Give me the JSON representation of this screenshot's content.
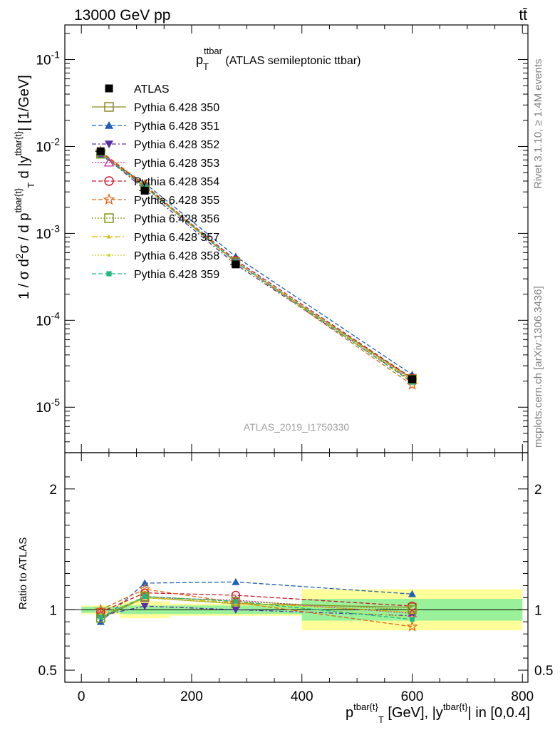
{
  "header": {
    "left": "13000 GeV pp",
    "right": "tt̄"
  },
  "side_texts": {
    "rivet": "Rivet 3.1.10, ≥ 1.4M events",
    "mcplots": "mcplots.cern.ch [arXiv:1306.3436]"
  },
  "chart_data": {
    "type": "line",
    "title": "p_T^{ttbar} (ATLAS semileptonic ttbar)",
    "analysis_label": "ATLAS_2019_I1750330",
    "xlabel": "p^{tbar{t}}_T [GeV], |y^{tbar{t}}| in [0,0.4]",
    "ylabel": "1 / σ d²σ / d p^{tbar{t}}_T d |y^{tbar{t}}| [1/GeV]",
    "ratio_ylabel": "Ratio to ATLAS",
    "xlim": [
      -30,
      810
    ],
    "ylim": [
      3e-06,
      0.25
    ],
    "yscale": "log",
    "ratio_ylim": [
      0.4,
      2.3
    ],
    "x_ticks": [
      "0",
      "200",
      "400",
      "600",
      "800"
    ],
    "y_ticks": [
      "10^-5",
      "10^-4",
      "10^-3",
      "10^-2",
      "10^-1"
    ],
    "ratio_ticks": [
      "0.5",
      "1",
      "2"
    ],
    "legend_placement": "top-left",
    "x": [
      35,
      115,
      280,
      600
    ],
    "data": {
      "name": "ATLAS",
      "values": [
        0.0088,
        0.0031,
        0.00044,
        2.1e-05
      ],
      "x_edges": [
        [
          0,
          70
        ],
        [
          70,
          160
        ],
        [
          160,
          400
        ],
        [
          400,
          800
        ]
      ],
      "band_stat": [
        0.025,
        0.035,
        0.035,
        0.09
      ],
      "band_total": [
        0.035,
        0.07,
        0.05,
        0.17
      ]
    },
    "series": [
      {
        "name": "Pythia 6.428 350",
        "color": "#8b8b2a",
        "marker": "square-open",
        "dash": "solid",
        "ratio": [
          0.93,
          1.1,
          1.05,
          1.02
        ]
      },
      {
        "name": "Pythia 6.428 351",
        "color": "#1f5fb8",
        "marker": "triangle-up",
        "dash": "6,3",
        "ratio": [
          0.9,
          1.22,
          1.23,
          1.13
        ]
      },
      {
        "name": "Pythia 6.428 352",
        "color": "#5b2aa8",
        "marker": "triangle-down",
        "dash": "6,3,2,3",
        "ratio": [
          0.95,
          1.03,
          1.0,
          0.95
        ]
      },
      {
        "name": "Pythia 6.428 353",
        "color": "#d0309a",
        "marker": "triangle-up-open",
        "dash": "2,2",
        "ratio": [
          0.96,
          1.1,
          1.08,
          0.97
        ]
      },
      {
        "name": "Pythia 6.428 354",
        "color": "#d4142c",
        "marker": "circle-open",
        "dash": "6,3",
        "ratio": [
          0.98,
          1.14,
          1.12,
          1.03
        ]
      },
      {
        "name": "Pythia 6.428 355",
        "color": "#e06818",
        "marker": "star-open",
        "dash": "6,3",
        "ratio": [
          1.0,
          1.17,
          1.06,
          0.86
        ]
      },
      {
        "name": "Pythia 6.428 356",
        "color": "#7e9a1a",
        "marker": "square-open",
        "dash": "2,2",
        "ratio": [
          0.93,
          1.11,
          1.07,
          1.0
        ]
      },
      {
        "name": "Pythia 6.428 357",
        "color": "#d8b800",
        "marker": "tri-small",
        "dash": "8,3,2,3",
        "ratio": [
          0.95,
          1.1,
          1.06,
          0.98
        ]
      },
      {
        "name": "Pythia 6.428 358",
        "color": "#c8d82a",
        "marker": "dot",
        "dash": "2,2",
        "ratio": [
          0.96,
          1.1,
          1.05,
          0.94
        ]
      },
      {
        "name": "Pythia 6.428 359",
        "color": "#20b880",
        "marker": "square-small",
        "dash": "6,3",
        "ratio": [
          0.94,
          1.11,
          1.07,
          0.92
        ]
      }
    ]
  }
}
